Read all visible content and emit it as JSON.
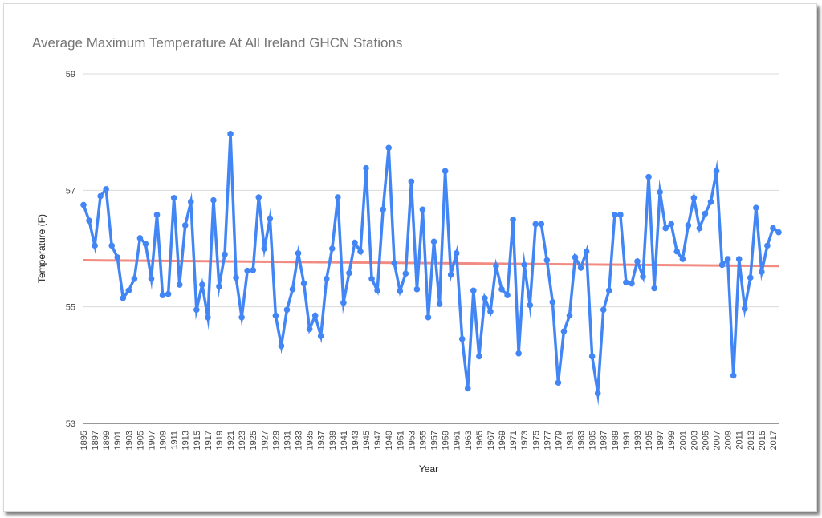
{
  "chart_data": {
    "type": "line",
    "title": "Average Maximum Temperature At All Ireland GHCN Stations",
    "xlabel": "Year",
    "ylabel": "Temperature (F)",
    "ylim": [
      53,
      59
    ],
    "yticks": [
      "53",
      "55",
      "57",
      "59"
    ],
    "grid": true,
    "x_start": 1895,
    "x_end": 2018,
    "xticks": [
      "1895",
      "1897",
      "1899",
      "1901",
      "1903",
      "1905",
      "1907",
      "1909",
      "1911",
      "1913",
      "1915",
      "1917",
      "1919",
      "1921",
      "1923",
      "1925",
      "1927",
      "1929",
      "1931",
      "1933",
      "1935",
      "1937",
      "1939",
      "1941",
      "1943",
      "1945",
      "1947",
      "1949",
      "1951",
      "1953",
      "1955",
      "1957",
      "1959",
      "1961",
      "1963",
      "1965",
      "1967",
      "1969",
      "1971",
      "1973",
      "1975",
      "1977",
      "1979",
      "1981",
      "1983",
      "1985",
      "1987",
      "1989",
      "1991",
      "1993",
      "1995",
      "1997",
      "1999",
      "2001",
      "2003",
      "2005",
      "2007",
      "2009",
      "2011",
      "2013",
      "2015",
      "2017"
    ],
    "series": [
      {
        "color": "#4285f4",
        "values": [
          56.75,
          56.48,
          56.05,
          56.9,
          57.02,
          56.05,
          55.85,
          55.15,
          55.28,
          55.48,
          56.18,
          56.08,
          55.48,
          56.58,
          55.2,
          55.22,
          56.87,
          55.38,
          56.4,
          56.8,
          54.95,
          55.38,
          54.82,
          56.83,
          55.35,
          55.9,
          57.97,
          55.5,
          54.82,
          55.62,
          55.63,
          56.88,
          56.0,
          56.52,
          54.85,
          54.33,
          54.95,
          55.3,
          55.92,
          55.4,
          54.62,
          54.85,
          54.5,
          55.48,
          56.0,
          56.88,
          55.07,
          55.58,
          56.1,
          55.95,
          57.38,
          55.48,
          55.28,
          56.67,
          57.73,
          55.75,
          55.27,
          55.57,
          57.15,
          55.3,
          56.67,
          54.82,
          56.12,
          55.05,
          57.33,
          55.55,
          55.92,
          54.45,
          53.6,
          55.28,
          54.15,
          55.15,
          54.92,
          55.7,
          55.3,
          55.2,
          56.5,
          54.2,
          55.72,
          55.03,
          56.42,
          56.42,
          55.8,
          55.08,
          53.7,
          54.58,
          54.85,
          55.85,
          55.67,
          55.95,
          54.15,
          53.52,
          54.95,
          55.28,
          56.58,
          56.58,
          55.42,
          55.4,
          55.78,
          55.52,
          57.23,
          55.32,
          56.97,
          56.35,
          56.42,
          55.95,
          55.82,
          56.4,
          56.87,
          56.35,
          56.6,
          56.8,
          57.33,
          55.72,
          55.82,
          53.82,
          55.82,
          54.97,
          55.5,
          56.7,
          55.6,
          56.05,
          56.35,
          56.28
        ]
      }
    ],
    "trendline": {
      "color": "#f28b82",
      "start": 55.8,
      "end": 55.7
    }
  }
}
